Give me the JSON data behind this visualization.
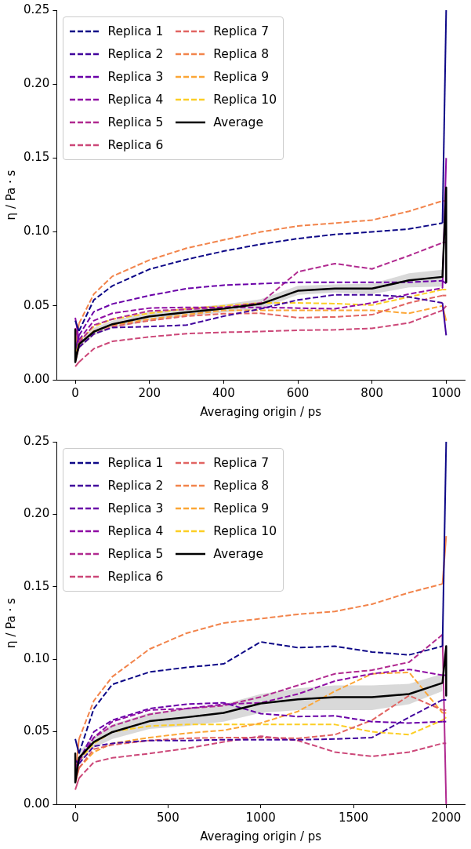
{
  "chart_data": [
    {
      "type": "line",
      "xlabel": "Averaging origin / ps",
      "ylabel": "η / Pa · s",
      "xlim": [
        -50,
        1050
      ],
      "ylim": [
        0,
        0.25
      ],
      "xticks": [
        0,
        200,
        400,
        600,
        800,
        1000
      ],
      "yticks": [
        {
          "value": 0,
          "label": "0.00"
        },
        {
          "value": 0.05,
          "label": "0.05"
        },
        {
          "value": 0.1,
          "label": "0.10"
        },
        {
          "value": 0.15,
          "label": "0.15"
        },
        {
          "value": 0.2,
          "label": "0.20"
        },
        {
          "value": 0.25,
          "label": "0.25"
        }
      ],
      "legend": "top left",
      "line_style": "dashed",
      "x": [
        0,
        10,
        50,
        100,
        200,
        300,
        400,
        500,
        600,
        700,
        800,
        900,
        990,
        1000
      ],
      "series": [
        {
          "name": "Replica 1",
          "color": "#0d0887",
          "values": [
            0.04,
            0.033,
            0.054,
            0.0635,
            0.0748,
            0.0814,
            0.087,
            0.0917,
            0.0955,
            0.0983,
            0.1,
            0.102,
            0.106,
            0.25
          ]
        },
        {
          "name": "Replica 2",
          "color": "#41049d",
          "values": [
            0.015,
            0.022,
            0.031,
            0.0353,
            0.036,
            0.037,
            0.043,
            0.048,
            0.054,
            0.0575,
            0.0575,
            0.056,
            0.052,
            0.03
          ]
        },
        {
          "name": "Replica 3",
          "color": "#6a00a8",
          "values": [
            0.02,
            0.03,
            0.046,
            0.0513,
            0.057,
            0.0617,
            0.064,
            0.065,
            0.066,
            0.066,
            0.066,
            0.066,
            0.067,
            0.065
          ]
        },
        {
          "name": "Replica 4",
          "color": "#8f0da4",
          "values": [
            0.042,
            0.027,
            0.04,
            0.045,
            0.0485,
            0.049,
            0.049,
            0.049,
            0.0485,
            0.048,
            0.052,
            0.058,
            0.062,
            0.15
          ]
        },
        {
          "name": "Replica 5",
          "color": "#b12a90",
          "values": [
            0.035,
            0.025,
            0.037,
            0.041,
            0.0466,
            0.0476,
            0.049,
            0.052,
            0.073,
            0.0786,
            0.075,
            0.084,
            0.0927,
            0.093
          ]
        },
        {
          "name": "Replica 6",
          "color": "#cc4778",
          "values": [
            0.009,
            0.012,
            0.021,
            0.026,
            0.029,
            0.0312,
            0.0321,
            0.0327,
            0.0335,
            0.0338,
            0.0348,
            0.0385,
            0.047,
            0.05
          ]
        },
        {
          "name": "Replica 7",
          "color": "#e16462",
          "values": [
            0.012,
            0.022,
            0.031,
            0.036,
            0.04,
            0.043,
            0.0447,
            0.045,
            0.042,
            0.0425,
            0.044,
            0.052,
            0.057,
            0.057
          ]
        },
        {
          "name": "Replica 8",
          "color": "#f2844b",
          "values": [
            0.022,
            0.038,
            0.058,
            0.07,
            0.081,
            0.089,
            0.0946,
            0.1,
            0.104,
            0.106,
            0.108,
            0.114,
            0.121,
            0.121
          ]
        },
        {
          "name": "Replica 9",
          "color": "#fca636",
          "values": [
            0.015,
            0.024,
            0.033,
            0.037,
            0.041,
            0.044,
            0.047,
            0.047,
            0.047,
            0.047,
            0.047,
            0.045,
            0.05,
            0.04
          ]
        },
        {
          "name": "Replica 10",
          "color": "#fcce25",
          "values": [
            0.018,
            0.026,
            0.036,
            0.041,
            0.045,
            0.048,
            0.05,
            0.052,
            0.052,
            0.0515,
            0.0505,
            0.056,
            0.061,
            0.061
          ]
        },
        {
          "name": "Average",
          "color": "#000000",
          "line_style": "solid",
          "x": [
            0,
            0,
            10,
            50,
            100,
            200,
            300,
            400,
            500,
            600,
            700,
            800,
            900,
            990,
            1000,
            1000
          ],
          "values": [
            0.034,
            0.012,
            0.024,
            0.0325,
            0.0376,
            0.0429,
            0.0457,
            0.0481,
            0.0513,
            0.0602,
            0.0617,
            0.0617,
            0.0673,
            0.0696,
            0.13,
            0.066
          ],
          "lower": [
            null,
            null,
            0.021,
            0.03,
            0.035,
            0.04,
            0.043,
            0.0455,
            0.048,
            0.0575,
            0.059,
            0.058,
            0.0625,
            0.063,
            null,
            null
          ],
          "upper": [
            null,
            null,
            0.027,
            0.035,
            0.04,
            0.046,
            0.0485,
            0.051,
            0.0545,
            0.0635,
            0.0645,
            0.065,
            0.072,
            0.0745,
            null,
            null
          ]
        }
      ]
    },
    {
      "type": "line",
      "xlabel": "Averaging origin / ps",
      "ylabel": "η / Pa · s",
      "xlim": [
        -100,
        2100
      ],
      "ylim": [
        0,
        0.25
      ],
      "xticks": [
        0,
        500,
        1000,
        1500,
        2000
      ],
      "yticks": [
        {
          "value": 0,
          "label": "0.00"
        },
        {
          "value": 0.05,
          "label": "0.05"
        },
        {
          "value": 0.1,
          "label": "0.10"
        },
        {
          "value": 0.15,
          "label": "0.15"
        },
        {
          "value": 0.2,
          "label": "0.20"
        },
        {
          "value": 0.25,
          "label": "0.25"
        }
      ],
      "legend": "top left",
      "line_style": "dashed",
      "x": [
        0,
        20,
        100,
        200,
        400,
        600,
        800,
        1000,
        1200,
        1400,
        1600,
        1800,
        1980,
        2000
      ],
      "series": [
        {
          "name": "Replica 1",
          "color": "#0d0887",
          "values": [
            0.045,
            0.035,
            0.066,
            0.0827,
            0.0912,
            0.0944,
            0.0968,
            0.112,
            0.108,
            0.109,
            0.105,
            0.103,
            0.109,
            0.25
          ]
        },
        {
          "name": "Replica 2",
          "color": "#41049d",
          "values": [
            0.03,
            0.028,
            0.04,
            0.042,
            0.044,
            0.044,
            0.0445,
            0.0445,
            0.0445,
            0.045,
            0.046,
            0.06,
            0.072,
            0.072
          ]
        },
        {
          "name": "Replica 3",
          "color": "#6a00a8",
          "values": [
            0.02,
            0.03,
            0.05,
            0.058,
            0.066,
            0.069,
            0.07,
            0.0625,
            0.0605,
            0.061,
            0.057,
            0.056,
            0.057,
            0.057
          ]
        },
        {
          "name": "Replica 4",
          "color": "#8f0da4",
          "values": [
            0.025,
            0.03,
            0.046,
            0.057,
            0.065,
            0.066,
            0.069,
            0.07,
            0.076,
            0.085,
            0.09,
            0.093,
            0.089,
            0.089
          ]
        },
        {
          "name": "Replica 5",
          "color": "#b12a90",
          "values": [
            0.03,
            0.03,
            0.046,
            0.054,
            0.062,
            0.066,
            0.068,
            0.074,
            0.082,
            0.09,
            0.0925,
            0.098,
            0.117,
            0
          ]
        },
        {
          "name": "Replica 6",
          "color": "#cc4778",
          "values": [
            0.01,
            0.018,
            0.029,
            0.032,
            0.035,
            0.0385,
            0.043,
            0.047,
            0.044,
            0.036,
            0.033,
            0.036,
            0.042,
            0.042
          ]
        },
        {
          "name": "Replica 7",
          "color": "#e16462",
          "values": [
            0.015,
            0.025,
            0.038,
            0.041,
            0.044,
            0.0455,
            0.046,
            0.046,
            0.0455,
            0.048,
            0.058,
            0.075,
            0.065,
            0.065
          ]
        },
        {
          "name": "Replica 8",
          "color": "#f2844b",
          "values": [
            0.02,
            0.045,
            0.0714,
            0.088,
            0.107,
            0.118,
            0.125,
            0.128,
            0.131,
            0.133,
            0.138,
            0.146,
            0.152,
            0.185
          ]
        },
        {
          "name": "Replica 9",
          "color": "#fca636",
          "values": [
            0.015,
            0.025,
            0.036,
            0.042,
            0.046,
            0.049,
            0.051,
            0.056,
            0.064,
            0.078,
            0.09,
            0.091,
            0.063,
            0.063
          ]
        },
        {
          "name": "Replica 10",
          "color": "#fcce25",
          "values": [
            0.02,
            0.03,
            0.042,
            0.05,
            0.054,
            0.055,
            0.055,
            0.055,
            0.055,
            0.055,
            0.05,
            0.048,
            0.058,
            0.06
          ]
        },
        {
          "name": "Average",
          "color": "#000000",
          "line_style": "solid",
          "x": [
            0,
            0,
            20,
            100,
            200,
            400,
            600,
            800,
            1000,
            1200,
            1400,
            1600,
            1800,
            1980,
            2000,
            2000
          ],
          "values": [
            0.035,
            0.015,
            0.032,
            0.043,
            0.0498,
            0.0573,
            0.06,
            0.063,
            0.0695,
            0.0724,
            0.0739,
            0.0739,
            0.076,
            0.0837,
            0.109,
            0.075
          ],
          "lower": [
            null,
            null,
            0.028,
            0.039,
            0.045,
            0.052,
            0.054,
            0.057,
            0.063,
            0.065,
            0.065,
            0.065,
            0.069,
            0.078,
            null,
            null
          ],
          "upper": [
            null,
            null,
            0.036,
            0.047,
            0.055,
            0.063,
            0.066,
            0.069,
            0.076,
            0.08,
            0.082,
            0.082,
            0.083,
            0.09,
            null,
            null
          ]
        }
      ]
    }
  ]
}
